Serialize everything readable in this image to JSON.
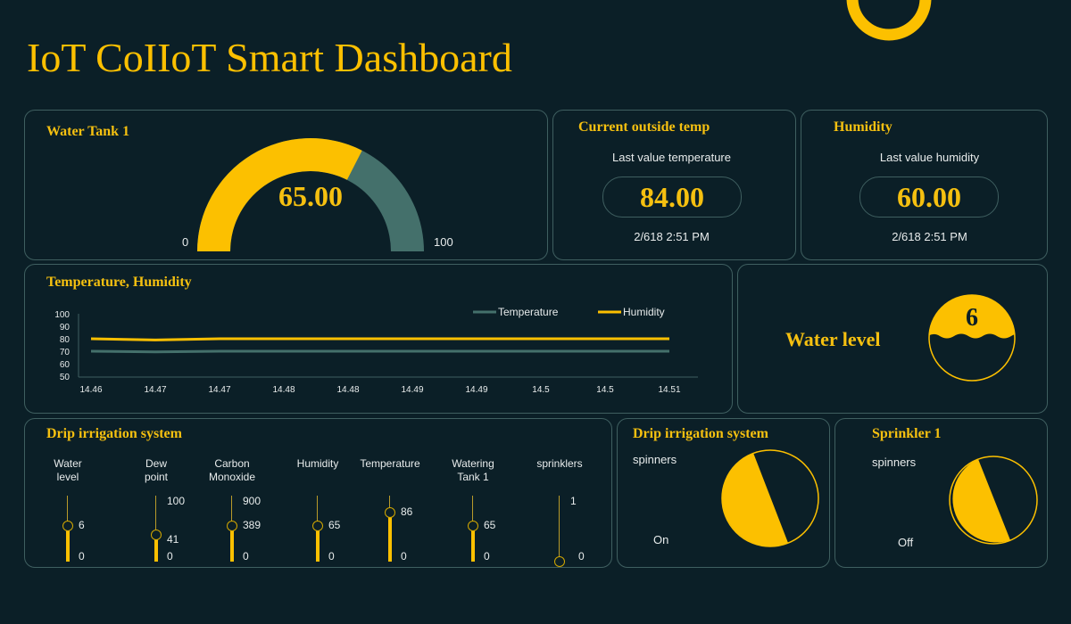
{
  "header": {
    "title": "IoT CoIIoT Smart Dashboard"
  },
  "colors": {
    "accent": "#fcc000",
    "teal": "#44706b",
    "background": "#0b1f27",
    "border": "#3f5f60"
  },
  "water_tank": {
    "title": "Water Tank 1",
    "value": "65.00",
    "value_num": 65,
    "min": "0",
    "max": "100"
  },
  "outside_temp": {
    "title": "Current outside temp",
    "subtitle": "Last value temperature",
    "value": "84.00",
    "timestamp": "2/618 2:51 PM"
  },
  "humidity": {
    "title": "Humidity",
    "subtitle": "Last value humidity",
    "value": "60.00",
    "timestamp": "2/618 2:51 PM"
  },
  "chart_data": {
    "type": "line",
    "title": "Temperature, Humidity",
    "categories": [
      "14.46",
      "14.47",
      "14.47",
      "14.48",
      "14.48",
      "14.49",
      "14.49",
      "14.5",
      "14.5",
      "14.51"
    ],
    "yticks": [
      "100",
      "90",
      "80",
      "70",
      "60",
      "50"
    ],
    "ylim": [
      50,
      100
    ],
    "legend": "top-right",
    "series": [
      {
        "name": "Temperature",
        "color": "#44706b",
        "values": [
          70,
          69.5,
          70,
          70,
          70,
          70,
          70,
          70,
          70,
          70
        ]
      },
      {
        "name": "Humidity",
        "color": "#fcc000",
        "values": [
          80,
          79,
          80,
          80,
          80,
          80,
          80,
          80,
          80,
          80
        ]
      }
    ]
  },
  "water_level": {
    "label": "Water level",
    "value": "6"
  },
  "drip_sliders": {
    "title": "Drip irrigation system",
    "sliders": [
      {
        "label1": "Water",
        "label2": "level",
        "max": "",
        "value": "6",
        "min": "0",
        "level": 0.54
      },
      {
        "label1": "Dew",
        "label2": "point",
        "max": "100",
        "value": "41",
        "min": "0",
        "level": 0.41
      },
      {
        "label1": "Carbon",
        "label2": "Monoxide",
        "max": "900",
        "value": "389",
        "min": "0",
        "level": 0.54
      },
      {
        "label1": "",
        "label2": "Humidity",
        "max": "",
        "value": "65",
        "min": "0",
        "level": 0.54
      },
      {
        "label1": "",
        "label2": "Temperature",
        "max": "",
        "value": "86",
        "min": "0",
        "level": 0.75
      },
      {
        "label1": "Watering",
        "label2": "Tank 1",
        "max": "",
        "value": "65",
        "min": "0",
        "level": 0.54
      },
      {
        "label1": "",
        "label2": "sprinklers",
        "max": "1",
        "value": "",
        "min": "0",
        "level": 0
      }
    ]
  },
  "drip_status": {
    "title": "Drip irrigation system",
    "label": "spinners",
    "state": "On"
  },
  "sprinkler": {
    "title": "Sprinkler 1",
    "label": "spinners",
    "state": "Off"
  }
}
